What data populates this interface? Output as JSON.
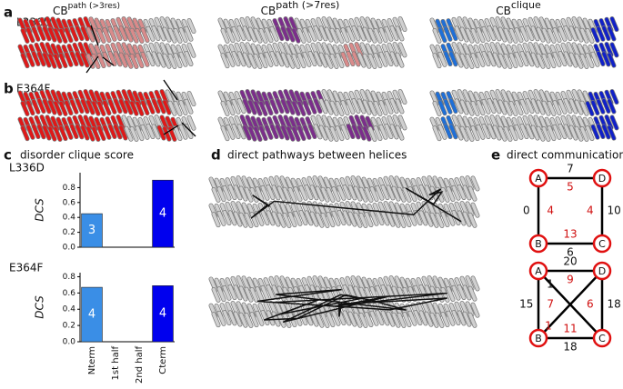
{
  "panel_a": {
    "label": "a",
    "mutant": "L336D"
  },
  "panel_b": {
    "label": "b",
    "mutant": "E364F"
  },
  "columns": [
    {
      "base": "CB",
      "sup": "path (>3res)"
    },
    {
      "base": "CB",
      "sup": "path (>7res)"
    },
    {
      "base": "CB",
      "sup": "clique"
    }
  ],
  "chart_data": {
    "type": "bar",
    "label": "c",
    "title": "disorder clique score",
    "ylabel": "DCS",
    "categories": [
      "Nterm",
      "1st half",
      "2nd half",
      "Cterm"
    ],
    "colors": [
      "#3a8ee6",
      "#3a8ee6",
      "#3a8ee6",
      "#0000ee"
    ],
    "series": [
      {
        "name": "L336D",
        "values": [
          0.45,
          0,
          0,
          0.9
        ],
        "bar_labels": [
          "3",
          null,
          null,
          "4"
        ],
        "ylim": [
          0,
          1
        ],
        "yticks": [
          {
            "value": 0,
            "label": "0.0"
          },
          0.2,
          0.4,
          0.6,
          0.8
        ]
      },
      {
        "name": "E364F",
        "values": [
          0.67,
          0,
          0,
          0.69
        ],
        "bar_labels": [
          "4",
          null,
          null,
          "4"
        ],
        "ylim": [
          0,
          0.85
        ],
        "yticks": [
          {
            "value": 0,
            "label": "0.0"
          },
          0.2,
          0.4,
          0.6,
          0.8
        ]
      }
    ]
  },
  "panel_d": {
    "label": "d",
    "title": "direct pathways between helices"
  },
  "panel_e": {
    "label": "e",
    "title": "direct communications",
    "nodes": [
      "A",
      "B",
      "C",
      "D"
    ],
    "networks": [
      {
        "edges": [
          {
            "from": "A",
            "to": "D",
            "black": "7",
            "red": "5"
          },
          {
            "from": "A",
            "to": "B",
            "black": "0",
            "red": "4"
          },
          {
            "from": "D",
            "to": "C",
            "black": "10",
            "red": "4"
          },
          {
            "from": "B",
            "to": "C",
            "black": "6",
            "red": "13"
          }
        ]
      },
      {
        "edges": [
          {
            "from": "A",
            "to": "D",
            "black": "20",
            "red": "9"
          },
          {
            "from": "A",
            "to": "B",
            "black": "15",
            "red": "7"
          },
          {
            "from": "D",
            "to": "C",
            "black": "18",
            "red": "6"
          },
          {
            "from": "B",
            "to": "C",
            "black": "18",
            "red": "11"
          },
          {
            "from": "A",
            "to": "C",
            "black": "1",
            "red": null
          },
          {
            "from": "B",
            "to": "D",
            "black": null,
            "red": "1"
          }
        ]
      }
    ]
  }
}
